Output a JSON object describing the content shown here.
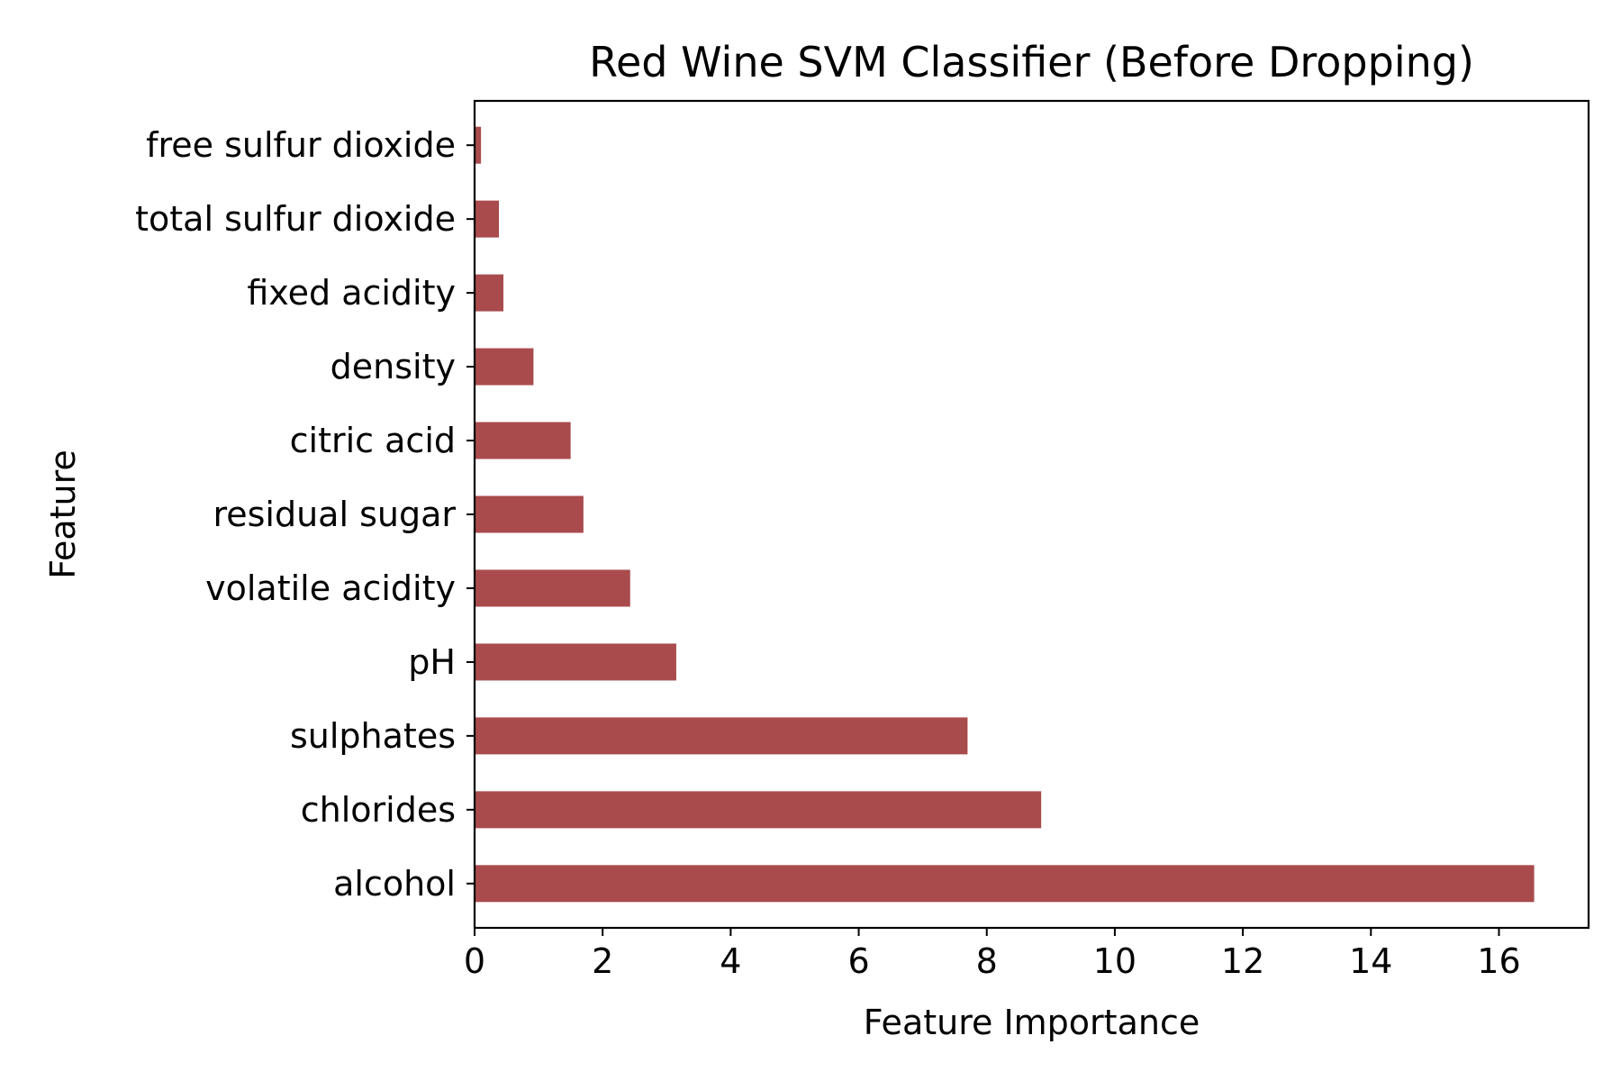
{
  "chart_data": {
    "type": "bar",
    "orientation": "horizontal",
    "title": "Red Wine SVM Classifier (Before Dropping)",
    "xlabel": "Feature Importance",
    "ylabel": "Feature",
    "categories": [
      "alcohol",
      "chlorides",
      "sulphates",
      "pH",
      "volatile acidity",
      "residual sugar",
      "citric acid",
      "density",
      "fixed acidity",
      "total sulfur dioxide",
      "free sulfur dioxide"
    ],
    "values": [
      16.55,
      8.85,
      7.7,
      3.15,
      2.43,
      1.7,
      1.5,
      0.92,
      0.45,
      0.38,
      0.1
    ],
    "xlim": [
      0,
      17.4
    ],
    "xticks": [
      0,
      2,
      4,
      6,
      8,
      10,
      12,
      14,
      16
    ],
    "xtick_labels": [
      "0",
      "2",
      "4",
      "6",
      "8",
      "10",
      "12",
      "14",
      "16"
    ],
    "grid": false,
    "bar_color": "#a94b4d"
  }
}
